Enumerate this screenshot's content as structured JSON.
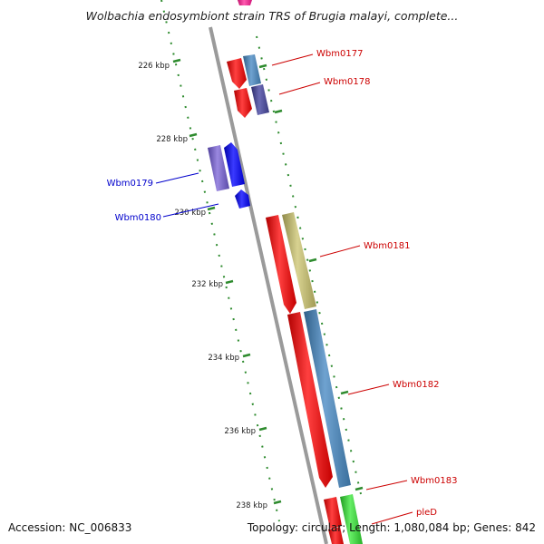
{
  "title": "Wolbachia endosymbiont strain TRS of Brugia malayi, complete...",
  "footer": {
    "accession": "Accession: NC_006833",
    "summary": "Topology: circular; Length: 1,080,084 bp; Genes: 842"
  },
  "ticks": [
    "226 kbp",
    "228 kbp",
    "230 kbp",
    "232 kbp",
    "234 kbp",
    "236 kbp",
    "238 kbp"
  ],
  "genes": {
    "red_strand": [
      "Wbm0177",
      "Wbm0178",
      "Wbm0181",
      "Wbm0182",
      "Wbm0183",
      "pleD"
    ],
    "blue_strand": [
      "Wbm0179",
      "Wbm0180"
    ]
  },
  "colors": {
    "backbone": "#8a8a8a",
    "tick_marks": "#2e8b2e",
    "red_gene": "#ff0000",
    "blue_gene": "#0000ff",
    "steel_blue": "#4682b4",
    "purple": "#7b68c8",
    "khaki": "#bdb76b",
    "lime": "#33cc33",
    "magenta": "#ff1493"
  }
}
